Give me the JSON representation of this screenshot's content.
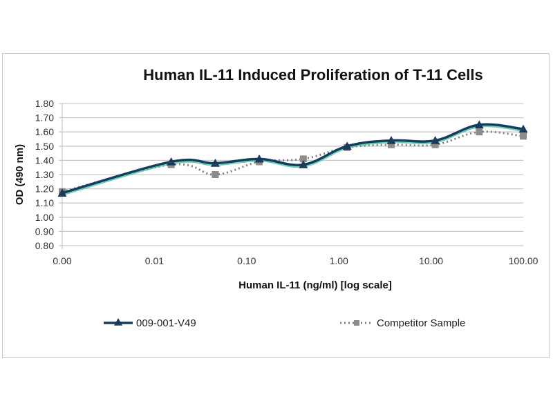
{
  "chart_data": {
    "type": "line",
    "title": "Human IL-11 Induced Proliferation of T-11 Cells",
    "xlabel": "Human IL-11 (ng/ml) [log scale]",
    "ylabel": "OD (490 nm)",
    "xscale": "log",
    "xlim": [
      0.001,
      100
    ],
    "ylim": [
      0.8,
      1.8
    ],
    "xticks": [
      0.001,
      0.01,
      0.1,
      1,
      10,
      100
    ],
    "xtick_labels": [
      "0.00",
      "0.01",
      "0.10",
      "1.00",
      "10.00",
      "100.00"
    ],
    "yticks": [
      0.8,
      0.9,
      1.0,
      1.1,
      1.2,
      1.3,
      1.4,
      1.5,
      1.6,
      1.7,
      1.8
    ],
    "ytick_labels": [
      "0.80",
      "0.90",
      "1.00",
      "1.10",
      "1.20",
      "1.30",
      "1.40",
      "1.50",
      "1.60",
      "1.70",
      "1.80"
    ],
    "grid": "horizontal",
    "legend_position": "bottom",
    "x": [
      0.001,
      0.0152,
      0.0457,
      0.137,
      0.412,
      1.23,
      3.7,
      11.1,
      33.3,
      100
    ],
    "series": [
      {
        "name": "009-001-V49",
        "color": "#1b3a5c",
        "glow": "#3fc9a8",
        "marker": "triangle",
        "style": "solid",
        "values": [
          1.17,
          1.39,
          1.38,
          1.41,
          1.37,
          1.5,
          1.54,
          1.54,
          1.65,
          1.62
        ]
      },
      {
        "name": "Competitor Sample",
        "color": "#7f7f7f",
        "marker": "square",
        "style": "dotted",
        "values": [
          1.18,
          1.37,
          1.3,
          1.39,
          1.41,
          1.49,
          1.51,
          1.51,
          1.6,
          1.57
        ]
      }
    ]
  }
}
